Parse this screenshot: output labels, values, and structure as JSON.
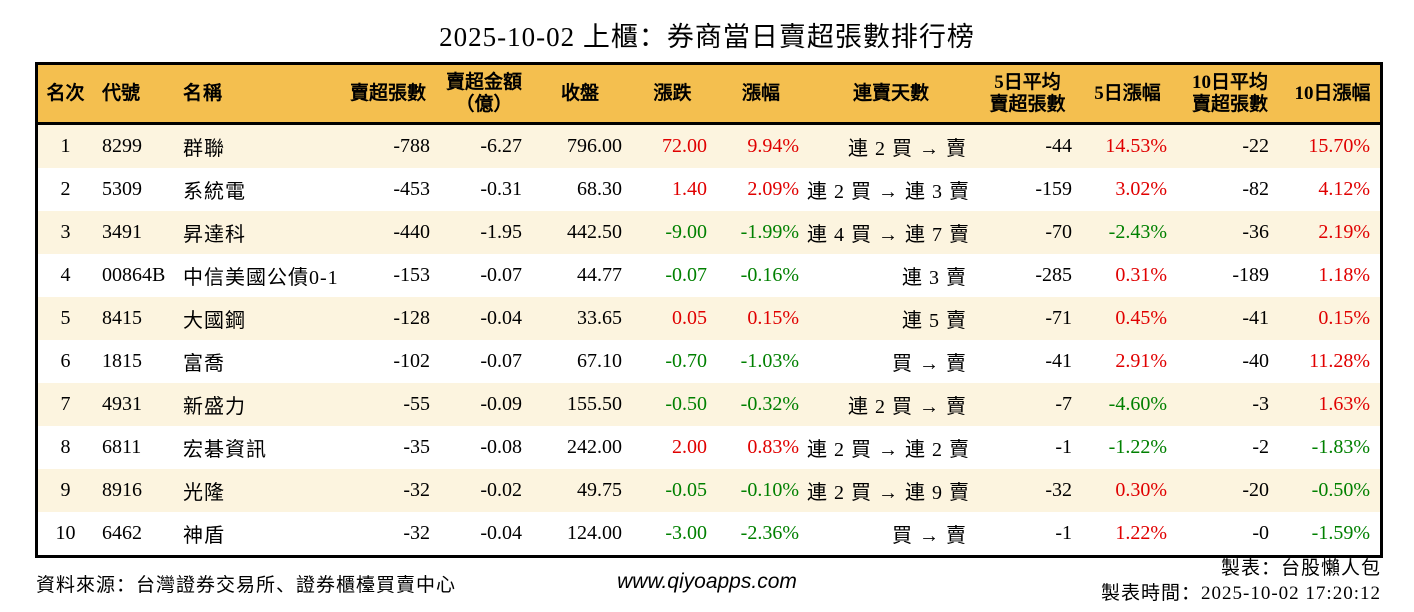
{
  "title": "2025-10-02 上櫃：券商當日賣超張數排行榜",
  "colors": {
    "header_bg": "#F4BF4F",
    "row_stripe_bg": "#FCF4DF",
    "up": "#E00000",
    "down": "#008000",
    "border": "#000000"
  },
  "table": {
    "headers": {
      "rank": "名次",
      "code": "代號",
      "name": "名稱",
      "net_sell_qty": "賣超張數",
      "net_sell_amt_line1": "賣超金額",
      "net_sell_amt_line2": "（億）",
      "close": "收盤",
      "change": "漲跌",
      "change_pct": "漲幅",
      "sell_streak": "連賣天數",
      "avg5_line1": "5日平均",
      "avg5_line2": "賣超張數",
      "pct5": "5日漲幅",
      "avg10_line1": "10日平均",
      "avg10_line2": "賣超張數",
      "pct10": "10日漲幅"
    },
    "rows": [
      {
        "rank": "1",
        "code": "8299",
        "name": "群聯",
        "qty": "-788",
        "amt": "-6.27",
        "close": "796.00",
        "chg": "72.00",
        "chg_dir": "up",
        "pct": "9.94%",
        "pct_dir": "up",
        "streak": "連 2 買 → 賣",
        "avg5": "-44",
        "pct5": "14.53%",
        "pct5_dir": "up",
        "avg10": "-22",
        "pct10": "15.70%",
        "pct10_dir": "up"
      },
      {
        "rank": "2",
        "code": "5309",
        "name": "系統電",
        "qty": "-453",
        "amt": "-0.31",
        "close": "68.30",
        "chg": "1.40",
        "chg_dir": "up",
        "pct": "2.09%",
        "pct_dir": "up",
        "streak": "連 2 買 → 連 3 賣",
        "avg5": "-159",
        "pct5": "3.02%",
        "pct5_dir": "up",
        "avg10": "-82",
        "pct10": "4.12%",
        "pct10_dir": "up"
      },
      {
        "rank": "3",
        "code": "3491",
        "name": "昇達科",
        "qty": "-440",
        "amt": "-1.95",
        "close": "442.50",
        "chg": "-9.00",
        "chg_dir": "down",
        "pct": "-1.99%",
        "pct_dir": "down",
        "streak": "連 4 買 → 連 7 賣",
        "avg5": "-70",
        "pct5": "-2.43%",
        "pct5_dir": "down",
        "avg10": "-36",
        "pct10": "2.19%",
        "pct10_dir": "up"
      },
      {
        "rank": "4",
        "code": "00864B",
        "name": "中信美國公債0-1",
        "qty": "-153",
        "amt": "-0.07",
        "close": "44.77",
        "chg": "-0.07",
        "chg_dir": "down",
        "pct": "-0.16%",
        "pct_dir": "down",
        "streak": "連 3 賣",
        "avg5": "-285",
        "pct5": "0.31%",
        "pct5_dir": "up",
        "avg10": "-189",
        "pct10": "1.18%",
        "pct10_dir": "up"
      },
      {
        "rank": "5",
        "code": "8415",
        "name": "大國鋼",
        "qty": "-128",
        "amt": "-0.04",
        "close": "33.65",
        "chg": "0.05",
        "chg_dir": "up",
        "pct": "0.15%",
        "pct_dir": "up",
        "streak": "連 5 賣",
        "avg5": "-71",
        "pct5": "0.45%",
        "pct5_dir": "up",
        "avg10": "-41",
        "pct10": "0.15%",
        "pct10_dir": "up"
      },
      {
        "rank": "6",
        "code": "1815",
        "name": "富喬",
        "qty": "-102",
        "amt": "-0.07",
        "close": "67.10",
        "chg": "-0.70",
        "chg_dir": "down",
        "pct": "-1.03%",
        "pct_dir": "down",
        "streak": "買 → 賣",
        "avg5": "-41",
        "pct5": "2.91%",
        "pct5_dir": "up",
        "avg10": "-40",
        "pct10": "11.28%",
        "pct10_dir": "up"
      },
      {
        "rank": "7",
        "code": "4931",
        "name": "新盛力",
        "qty": "-55",
        "amt": "-0.09",
        "close": "155.50",
        "chg": "-0.50",
        "chg_dir": "down",
        "pct": "-0.32%",
        "pct_dir": "down",
        "streak": "連 2 買 → 賣",
        "avg5": "-7",
        "pct5": "-4.60%",
        "pct5_dir": "down",
        "avg10": "-3",
        "pct10": "1.63%",
        "pct10_dir": "up"
      },
      {
        "rank": "8",
        "code": "6811",
        "name": "宏碁資訊",
        "qty": "-35",
        "amt": "-0.08",
        "close": "242.00",
        "chg": "2.00",
        "chg_dir": "up",
        "pct": "0.83%",
        "pct_dir": "up",
        "streak": "連 2 買 → 連 2 賣",
        "avg5": "-1",
        "pct5": "-1.22%",
        "pct5_dir": "down",
        "avg10": "-2",
        "pct10": "-1.83%",
        "pct10_dir": "down"
      },
      {
        "rank": "9",
        "code": "8916",
        "name": "光隆",
        "qty": "-32",
        "amt": "-0.02",
        "close": "49.75",
        "chg": "-0.05",
        "chg_dir": "down",
        "pct": "-0.10%",
        "pct_dir": "down",
        "streak": "連 2 買 → 連 9 賣",
        "avg5": "-32",
        "pct5": "0.30%",
        "pct5_dir": "up",
        "avg10": "-20",
        "pct10": "-0.50%",
        "pct10_dir": "down"
      },
      {
        "rank": "10",
        "code": "6462",
        "name": "神盾",
        "qty": "-32",
        "amt": "-0.04",
        "close": "124.00",
        "chg": "-3.00",
        "chg_dir": "down",
        "pct": "-2.36%",
        "pct_dir": "down",
        "streak": "買 → 賣",
        "avg5": "-1",
        "pct5": "1.22%",
        "pct5_dir": "up",
        "avg10": "-0",
        "pct10": "-1.59%",
        "pct10_dir": "down"
      }
    ]
  },
  "footer": {
    "source": "資料來源：台灣證券交易所、證券櫃檯買賣中心",
    "website": "www.qiyoapps.com",
    "author": "製表：台股懶人包",
    "generated": "製表時間：2025-10-02 17:20:12"
  }
}
